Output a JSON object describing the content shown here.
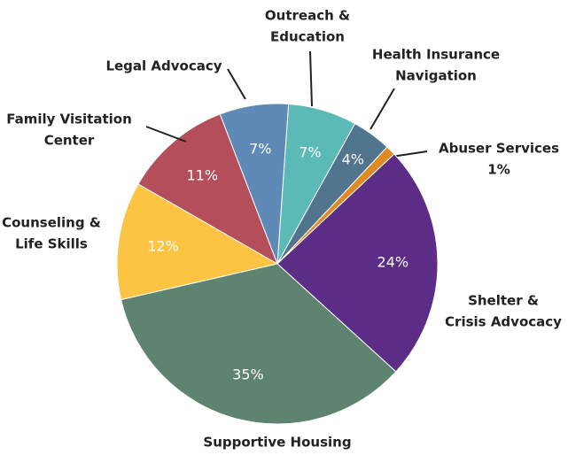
{
  "chart_data": {
    "type": "pie",
    "categories": [
      [
        "Outreach &",
        "Education"
      ],
      [
        "Health Insurance",
        "Navigation"
      ],
      [
        "Abuser Services"
      ],
      [
        "Shelter &",
        "Crisis Advocacy"
      ],
      [
        "Supportive Housing"
      ],
      [
        "Counseling &",
        "Life Skills"
      ],
      [
        "Family Visitation",
        "Center"
      ],
      [
        "Legal Advocacy"
      ]
    ],
    "values": [
      7,
      4,
      1,
      24,
      35,
      12,
      11,
      7
    ],
    "value_labels": [
      "7%",
      "4%",
      "1%",
      "24%",
      "35%",
      "12%",
      "11%",
      "7%"
    ],
    "colors": [
      "#5bbab5",
      "#52758e",
      "#e08a24",
      "#5c2d86",
      "#5e8370",
      "#fdc342",
      "#b44e5a",
      "#5f8ab8"
    ]
  }
}
